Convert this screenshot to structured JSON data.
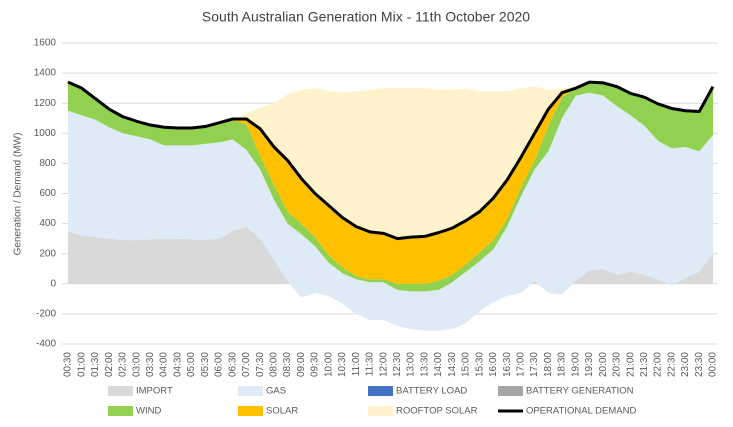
{
  "chart_data": {
    "type": "area",
    "title": "South Australian Generation Mix - 11th October 2020",
    "y_label": "Generation / Demand (MW)",
    "categories": [
      "00:30",
      "01:00",
      "01:30",
      "02:00",
      "02:30",
      "03:00",
      "03:30",
      "04:00",
      "04:30",
      "05:00",
      "05:30",
      "06:00",
      "06:30",
      "07:00",
      "07:30",
      "08:00",
      "08:30",
      "09:00",
      "09:30",
      "10:00",
      "10:30",
      "11:00",
      "11:30",
      "12:00",
      "12:30",
      "13:00",
      "13:30",
      "14:00",
      "14:30",
      "15:00",
      "15:30",
      "16:00",
      "16:30",
      "17:00",
      "17:30",
      "18:00",
      "18:30",
      "19:00",
      "19:30",
      "20:00",
      "20:30",
      "21:00",
      "21:30",
      "22:00",
      "22:30",
      "23:00",
      "23:30",
      "00:00"
    ],
    "ylim": [
      -400,
      1600
    ],
    "yticks": [
      -400,
      -200,
      0,
      200,
      400,
      600,
      800,
      1000,
      1200,
      1400,
      1600
    ],
    "grid": true,
    "stacked": true,
    "legend": "bottom",
    "series": [
      {
        "name": "IMPORT",
        "color": "#d9d9d9",
        "values": [
          350,
          320,
          310,
          300,
          290,
          290,
          295,
          300,
          300,
          295,
          290,
          300,
          350,
          380,
          300,
          160,
          20,
          -90,
          -60,
          -80,
          -130,
          -200,
          -240,
          -240,
          -280,
          -300,
          -310,
          -310,
          -300,
          -260,
          -180,
          -120,
          -80,
          -60,
          20,
          -60,
          -70,
          20,
          90,
          100,
          60,
          80,
          60,
          30,
          -10,
          40,
          80,
          200
        ]
      },
      {
        "name": "GAS",
        "color": "#deebf7",
        "values": [
          800,
          800,
          780,
          740,
          710,
          690,
          665,
          620,
          620,
          625,
          640,
          640,
          610,
          510,
          460,
          400,
          380,
          420,
          310,
          220,
          200,
          230,
          250,
          250,
          240,
          250,
          260,
          270,
          310,
          340,
          330,
          350,
          460,
          640,
          740,
          940,
          1170,
          1230,
          1180,
          1150,
          1120,
          1040,
          990,
          920,
          910,
          870,
          800,
          790
        ]
      },
      {
        "name": "BATTERY LOAD",
        "color": "#4472c4",
        "values": [
          0,
          0,
          0,
          0,
          0,
          0,
          0,
          0,
          0,
          0,
          0,
          0,
          0,
          0,
          0,
          0,
          0,
          0,
          0,
          0,
          0,
          0,
          0,
          0,
          0,
          0,
          0,
          0,
          0,
          0,
          0,
          0,
          0,
          0,
          0,
          0,
          0,
          0,
          0,
          0,
          0,
          0,
          0,
          0,
          0,
          0,
          0,
          0
        ]
      },
      {
        "name": "BATTERY GENERATION",
        "color": "#a5a5a5",
        "values": [
          0,
          0,
          0,
          0,
          0,
          0,
          0,
          0,
          0,
          0,
          0,
          0,
          0,
          0,
          0,
          0,
          0,
          0,
          0,
          0,
          0,
          0,
          0,
          0,
          0,
          0,
          0,
          0,
          0,
          0,
          0,
          0,
          0,
          0,
          0,
          0,
          0,
          0,
          0,
          0,
          0,
          0,
          0,
          0,
          0,
          0,
          0,
          0
        ]
      },
      {
        "name": "WIND",
        "color": "#92d050",
        "values": [
          180,
          170,
          130,
          110,
          100,
          90,
          90,
          110,
          110,
          110,
          110,
          120,
          125,
          170,
          90,
          100,
          80,
          70,
          60,
          50,
          40,
          20,
          20,
          20,
          40,
          50,
          50,
          60,
          50,
          50,
          60,
          60,
          50,
          60,
          60,
          170,
          140,
          50,
          70,
          85,
          130,
          145,
          190,
          245,
          265,
          240,
          265,
          320
        ]
      },
      {
        "name": "SOLAR",
        "color": "#ffc000",
        "values": [
          0,
          0,
          0,
          0,
          0,
          0,
          0,
          0,
          0,
          0,
          0,
          0,
          0,
          35,
          180,
          250,
          340,
          300,
          290,
          330,
          330,
          330,
          315,
          305,
          300,
          310,
          315,
          320,
          310,
          290,
          270,
          280,
          260,
          200,
          180,
          110,
          30,
          0,
          0,
          0,
          0,
          0,
          0,
          0,
          0,
          0,
          0,
          0
        ]
      },
      {
        "name": "ROOFTOP SOLAR",
        "color": "#fff2cc",
        "values": [
          0,
          0,
          0,
          0,
          0,
          0,
          0,
          0,
          0,
          0,
          0,
          0,
          0,
          40,
          140,
          290,
          440,
          590,
          700,
          760,
          830,
          900,
          945,
          965,
          1000,
          990,
          985,
          950,
          920,
          880,
          800,
          710,
          590,
          460,
          310,
          130,
          30,
          10,
          0,
          0,
          0,
          0,
          0,
          0,
          0,
          0,
          0,
          0
        ]
      },
      {
        "name": "OPERATIONAL DEMAND",
        "color": "#000000",
        "type": "line",
        "values": [
          1340,
          1300,
          1230,
          1160,
          1110,
          1080,
          1055,
          1040,
          1035,
          1035,
          1045,
          1070,
          1095,
          1095,
          1030,
          910,
          820,
          700,
          600,
          520,
          440,
          380,
          345,
          335,
          300,
          310,
          315,
          340,
          370,
          420,
          480,
          570,
          690,
          840,
          1000,
          1160,
          1270,
          1300,
          1340,
          1335,
          1310,
          1265,
          1240,
          1195,
          1165,
          1150,
          1145,
          1310
        ]
      }
    ]
  }
}
